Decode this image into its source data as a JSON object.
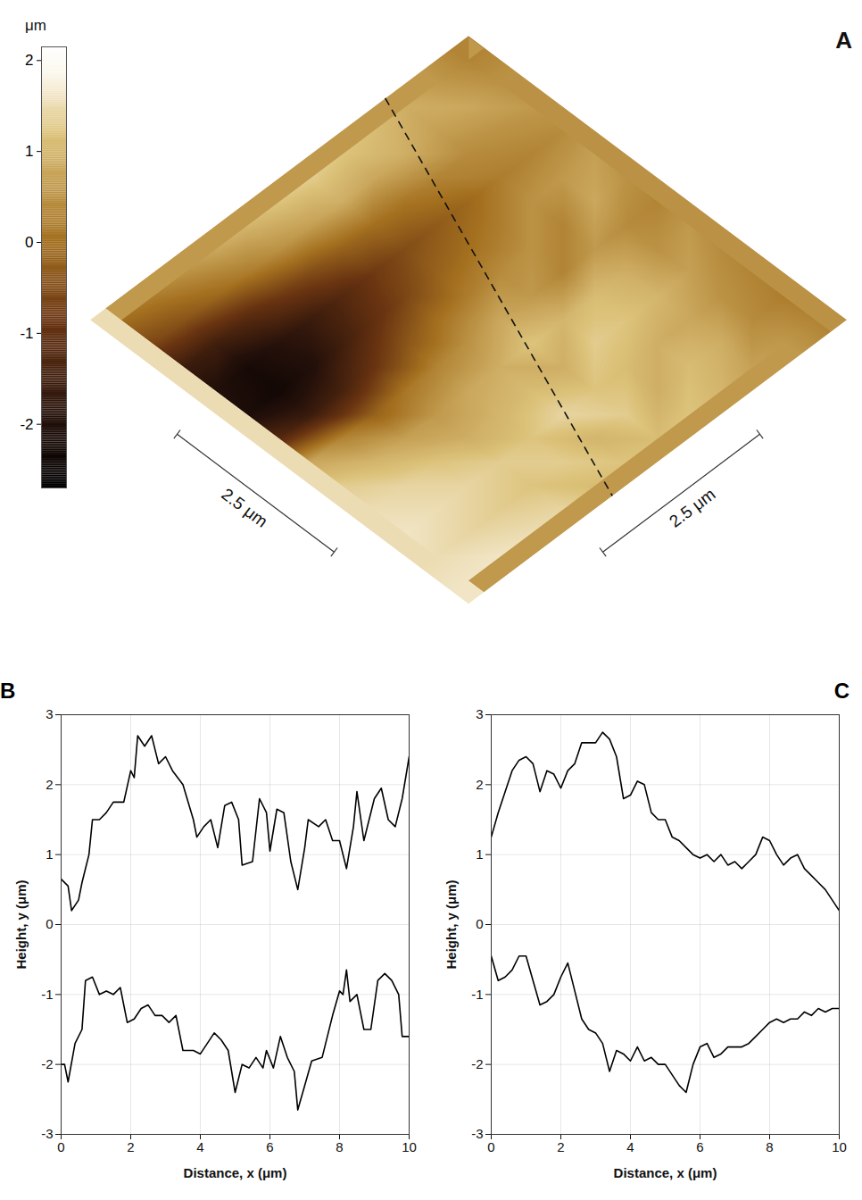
{
  "chart_data": [
    {
      "type": "heatmap",
      "panel": "A",
      "colorbar": {
        "label": "μm",
        "lim": [
          -2.7,
          2.15
        ],
        "ticks": [
          -2,
          -1,
          0,
          1,
          2
        ]
      },
      "scale_bars": [
        "2.5 μm",
        "2.5 μm"
      ],
      "cells": [
        [
          0.3,
          0.5,
          0.6,
          0.4,
          0.7,
          0.5,
          0.3,
          0.6,
          0.4,
          0.3,
          0.2,
          0.3
        ],
        [
          0.6,
          0.8,
          0.5,
          0.3,
          0.6,
          0.8,
          0.4,
          0.5,
          0.7,
          0.5,
          0.4,
          0.6
        ],
        [
          0.9,
          0.7,
          0.4,
          0.2,
          0.5,
          0.3,
          0.6,
          0.9,
          1.0,
          0.8,
          0.9,
          0.7
        ],
        [
          1.1,
          0.9,
          0.3,
          -0.1,
          0.2,
          0.5,
          0.3,
          1.1,
          1.2,
          0.9,
          1.1,
          1.0
        ],
        [
          1.2,
          0.8,
          0.1,
          -0.3,
          0.0,
          0.4,
          0.6,
          1.0,
          1.3,
          1.1,
          0.9,
          1.2
        ],
        [
          1.3,
          0.9,
          0.0,
          -0.5,
          -0.2,
          0.2,
          0.8,
          1.2,
          0.9,
          1.2,
          1.3,
          1.1
        ],
        [
          1.2,
          0.7,
          -0.2,
          -0.8,
          -0.6,
          0.0,
          0.5,
          0.9,
          1.1,
          1.4,
          1.0,
          1.2
        ],
        [
          1.0,
          0.5,
          -0.5,
          -1.2,
          -1.0,
          -0.4,
          0.3,
          0.8,
          1.0,
          1.2,
          1.3,
          1.1
        ],
        [
          0.8,
          0.2,
          -0.8,
          -1.6,
          -1.5,
          -0.9,
          0.1,
          0.6,
          0.9,
          1.3,
          1.2,
          1.4
        ],
        [
          0.5,
          -0.1,
          -1.2,
          -1.9,
          -2.0,
          -1.4,
          -0.2,
          0.7,
          1.2,
          1.4,
          1.3,
          1.5
        ],
        [
          0.2,
          -0.4,
          -1.5,
          -2.2,
          -2.3,
          -1.6,
          0.3,
          1.0,
          1.4,
          1.5,
          1.4,
          1.6
        ],
        [
          0.0,
          -0.6,
          -1.6,
          -2.0,
          -2.1,
          -1.2,
          0.8,
          1.3,
          1.5,
          1.6,
          1.5,
          1.6
        ]
      ]
    },
    {
      "type": "line",
      "panel": "B",
      "x_label": "Distance, x (μm)",
      "y_label": "Height, y (μm)",
      "xlim": [
        0,
        10
      ],
      "ylim": [
        -3,
        3
      ],
      "xticks": [
        0,
        2,
        4,
        6,
        8,
        10
      ],
      "yticks": [
        -3,
        -2,
        -1,
        0,
        1,
        2,
        3
      ],
      "grid": true,
      "series": [
        {
          "color": "#000000",
          "x": [
            0,
            0.2,
            0.3,
            0.5,
            0.6,
            0.8,
            0.9,
            1.1,
            1.3,
            1.5,
            1.8,
            2.0,
            2.1,
            2.2,
            2.4,
            2.6,
            2.8,
            3.0,
            3.2,
            3.5,
            3.8,
            3.9,
            4.1,
            4.3,
            4.5,
            4.7,
            4.9,
            5.1,
            5.2,
            5.5,
            5.7,
            5.9,
            6.0,
            6.2,
            6.4,
            6.6,
            6.8,
            7.0,
            7.1,
            7.4,
            7.6,
            7.8,
            8.0,
            8.2,
            8.4,
            8.5,
            8.7,
            9.0,
            9.2,
            9.4,
            9.6,
            9.8,
            10.0
          ],
          "values": [
            0.65,
            0.55,
            0.2,
            0.35,
            0.6,
            1.0,
            1.5,
            1.5,
            1.6,
            1.75,
            1.75,
            2.2,
            2.1,
            2.7,
            2.55,
            2.7,
            2.3,
            2.4,
            2.2,
            2.0,
            1.5,
            1.25,
            1.4,
            1.5,
            1.1,
            1.7,
            1.75,
            1.5,
            0.85,
            0.9,
            1.8,
            1.6,
            1.05,
            1.65,
            1.6,
            0.9,
            0.5,
            1.1,
            1.5,
            1.4,
            1.5,
            1.2,
            1.2,
            0.8,
            1.4,
            1.9,
            1.2,
            1.8,
            1.95,
            1.5,
            1.4,
            1.8,
            2.4
          ]
        },
        {
          "color": "#000000",
          "x": [
            0,
            0.1,
            0.2,
            0.4,
            0.6,
            0.7,
            0.9,
            1.1,
            1.3,
            1.5,
            1.7,
            1.9,
            2.1,
            2.3,
            2.5,
            2.7,
            2.9,
            3.1,
            3.3,
            3.5,
            3.8,
            4.0,
            4.2,
            4.4,
            4.6,
            4.8,
            5.0,
            5.2,
            5.4,
            5.6,
            5.8,
            5.9,
            6.1,
            6.3,
            6.5,
            6.7,
            6.8,
            7.0,
            7.2,
            7.5,
            7.8,
            8.0,
            8.1,
            8.2,
            8.3,
            8.5,
            8.7,
            8.9,
            9.1,
            9.3,
            9.5,
            9.7,
            9.8,
            10.0
          ],
          "values": [
            -2.0,
            -2.0,
            -2.25,
            -1.7,
            -1.5,
            -0.8,
            -0.75,
            -1.0,
            -0.95,
            -1.0,
            -0.9,
            -1.4,
            -1.35,
            -1.2,
            -1.15,
            -1.3,
            -1.3,
            -1.4,
            -1.3,
            -1.8,
            -1.8,
            -1.85,
            -1.7,
            -1.55,
            -1.65,
            -1.8,
            -2.4,
            -2.0,
            -2.05,
            -1.9,
            -2.05,
            -1.8,
            -2.05,
            -1.6,
            -1.9,
            -2.1,
            -2.65,
            -2.3,
            -1.95,
            -1.9,
            -1.3,
            -0.95,
            -1.0,
            -0.65,
            -1.1,
            -1.0,
            -1.5,
            -1.5,
            -0.8,
            -0.7,
            -0.8,
            -1.0,
            -1.6,
            -1.6
          ]
        }
      ]
    },
    {
      "type": "line",
      "panel": "C",
      "x_label": "Distance, x (μm)",
      "y_label": "Height, y (μm)",
      "xlim": [
        0,
        10
      ],
      "ylim": [
        -3,
        3
      ],
      "xticks": [
        0,
        2,
        4,
        6,
        8,
        10
      ],
      "yticks": [
        -3,
        -2,
        -1,
        0,
        1,
        2,
        3
      ],
      "grid": true,
      "series": [
        {
          "color": "#000000",
          "x": [
            0,
            0.2,
            0.4,
            0.6,
            0.8,
            1.0,
            1.2,
            1.4,
            1.6,
            1.8,
            2.0,
            2.2,
            2.4,
            2.6,
            2.8,
            3.0,
            3.2,
            3.4,
            3.6,
            3.8,
            4.0,
            4.2,
            4.4,
            4.6,
            4.8,
            5.0,
            5.2,
            5.4,
            5.6,
            5.8,
            6.0,
            6.2,
            6.4,
            6.6,
            6.8,
            7.0,
            7.2,
            7.4,
            7.6,
            7.8,
            8.0,
            8.2,
            8.4,
            8.6,
            8.8,
            9.0,
            9.2,
            9.4,
            9.6,
            9.8,
            10.0
          ],
          "values": [
            1.25,
            1.6,
            1.9,
            2.2,
            2.35,
            2.4,
            2.3,
            1.9,
            2.2,
            2.15,
            1.95,
            2.2,
            2.3,
            2.6,
            2.6,
            2.6,
            2.75,
            2.65,
            2.4,
            1.8,
            1.85,
            2.05,
            2.0,
            1.6,
            1.5,
            1.5,
            1.25,
            1.2,
            1.1,
            1.0,
            0.95,
            1.0,
            0.9,
            1.0,
            0.85,
            0.9,
            0.8,
            0.9,
            1.0,
            1.25,
            1.2,
            1.0,
            0.85,
            0.95,
            1.0,
            0.8,
            0.7,
            0.6,
            0.5,
            0.35,
            0.2
          ]
        },
        {
          "color": "#000000",
          "x": [
            0,
            0.2,
            0.4,
            0.6,
            0.8,
            1.0,
            1.2,
            1.4,
            1.6,
            1.8,
            2.0,
            2.2,
            2.4,
            2.6,
            2.8,
            3.0,
            3.2,
            3.4,
            3.6,
            3.8,
            4.0,
            4.2,
            4.4,
            4.6,
            4.8,
            5.0,
            5.2,
            5.4,
            5.6,
            5.8,
            6.0,
            6.2,
            6.4,
            6.6,
            6.8,
            7.0,
            7.2,
            7.4,
            7.6,
            7.8,
            8.0,
            8.2,
            8.4,
            8.6,
            8.8,
            9.0,
            9.2,
            9.4,
            9.6,
            9.8,
            10.0
          ],
          "values": [
            -0.45,
            -0.8,
            -0.75,
            -0.65,
            -0.45,
            -0.45,
            -0.8,
            -1.15,
            -1.1,
            -1.0,
            -0.75,
            -0.55,
            -0.95,
            -1.35,
            -1.5,
            -1.55,
            -1.7,
            -2.1,
            -1.8,
            -1.85,
            -1.95,
            -1.75,
            -1.95,
            -1.9,
            -2.0,
            -2.0,
            -2.15,
            -2.3,
            -2.4,
            -2.0,
            -1.75,
            -1.7,
            -1.9,
            -1.85,
            -1.75,
            -1.75,
            -1.75,
            -1.7,
            -1.6,
            -1.5,
            -1.4,
            -1.35,
            -1.4,
            -1.35,
            -1.35,
            -1.25,
            -1.3,
            -1.2,
            -1.25,
            -1.2,
            -1.2
          ]
        }
      ]
    }
  ]
}
